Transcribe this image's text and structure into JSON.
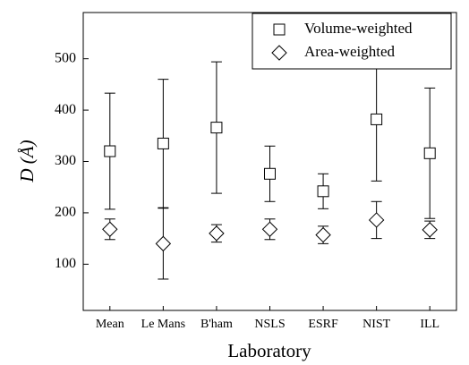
{
  "chart_data": {
    "type": "errorbar",
    "xlabel": "Laboratory",
    "ylabel": "D (Å)",
    "categories": [
      "Mean",
      "Le Mans",
      "B'ham",
      "NSLS",
      "ESRF",
      "NIST",
      "ILL"
    ],
    "series": [
      {
        "name": "Volume-weighted",
        "marker": "square",
        "color": "#000000",
        "values": [
          320,
          335,
          366,
          276,
          242,
          382,
          316
        ],
        "errors": [
          113,
          125,
          128,
          54,
          34,
          120,
          127
        ]
      },
      {
        "name": "Area-weighted",
        "marker": "diamond",
        "color": "#000000",
        "values": [
          168,
          140,
          160,
          168,
          157,
          186,
          167
        ],
        "errors": [
          20,
          69,
          17,
          20,
          17,
          36,
          17
        ]
      }
    ],
    "ylim": [
      10,
      590
    ],
    "yticks": [
      100,
      200,
      300,
      400,
      500
    ],
    "legend": "upper right"
  }
}
